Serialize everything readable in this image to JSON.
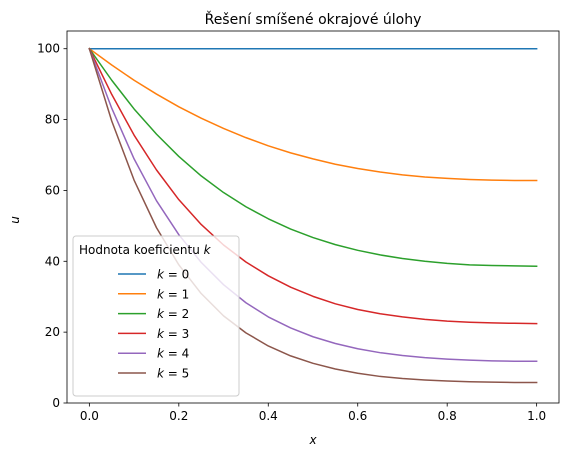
{
  "chart_data": {
    "type": "line",
    "title": "Řešení smíšené okrajové úlohy",
    "xlabel": "x",
    "ylabel": "u",
    "xlim": [
      -0.05,
      1.05
    ],
    "ylim": [
      0,
      105
    ],
    "xticks": [
      0.0,
      0.2,
      0.4,
      0.6,
      0.8,
      1.0
    ],
    "xtick_labels": [
      "0.0",
      "0.2",
      "0.4",
      "0.6",
      "0.8",
      "1.0"
    ],
    "yticks": [
      0,
      20,
      40,
      60,
      80,
      100
    ],
    "ytick_labels": [
      "0",
      "20",
      "40",
      "60",
      "80",
      "100"
    ],
    "grid": false,
    "legend": {
      "title": "Hodnota koeficientu k",
      "placement": "lower-left"
    },
    "x": [
      0.0,
      0.05,
      0.1,
      0.15,
      0.2,
      0.25,
      0.3,
      0.35,
      0.4,
      0.45,
      0.5,
      0.55,
      0.6,
      0.65,
      0.7,
      0.75,
      0.8,
      0.85,
      0.9,
      0.95,
      1.0
    ],
    "series": [
      {
        "name": "k = 0",
        "color": "#1f77b4",
        "values": [
          100.0,
          100.0,
          100.0,
          100.0,
          100.0,
          100.0,
          100.0,
          100.0,
          100.0,
          100.0,
          100.0,
          100.0,
          100.0,
          100.0,
          100.0,
          100.0,
          100.0,
          100.0,
          100.0,
          100.0,
          100.0
        ]
      },
      {
        "name": "k = 1",
        "color": "#ff7f0e",
        "values": [
          100.0,
          95.4,
          91.1,
          87.2,
          83.6,
          80.4,
          77.5,
          74.9,
          72.6,
          70.6,
          68.9,
          67.4,
          66.2,
          65.2,
          64.4,
          63.8,
          63.4,
          63.1,
          62.9,
          62.8,
          62.8
        ]
      },
      {
        "name": "k = 2",
        "color": "#2ca02c",
        "values": [
          100.0,
          91.1,
          83.0,
          75.9,
          69.6,
          64.1,
          59.4,
          55.4,
          52.0,
          49.1,
          46.7,
          44.7,
          43.1,
          41.8,
          40.8,
          40.0,
          39.4,
          39.0,
          38.8,
          38.7,
          38.6
        ]
      },
      {
        "name": "k = 3",
        "color": "#d62728",
        "values": [
          100.0,
          87.1,
          75.6,
          65.8,
          57.4,
          50.4,
          44.6,
          39.8,
          35.9,
          32.7,
          30.1,
          28.0,
          26.4,
          25.2,
          24.3,
          23.6,
          23.1,
          22.8,
          22.6,
          22.5,
          22.4
        ]
      },
      {
        "name": "k = 4",
        "color": "#9467bd",
        "values": [
          100.0,
          83.2,
          68.9,
          57.1,
          47.5,
          39.7,
          33.4,
          28.3,
          24.3,
          21.2,
          18.7,
          16.8,
          15.3,
          14.2,
          13.4,
          12.8,
          12.4,
          12.1,
          11.9,
          11.8,
          11.8
        ]
      },
      {
        "name": "k = 5",
        "color": "#8c564b",
        "values": [
          100.0,
          79.6,
          62.9,
          49.5,
          39.0,
          30.9,
          24.6,
          19.8,
          16.1,
          13.3,
          11.2,
          9.6,
          8.4,
          7.5,
          6.9,
          6.5,
          6.2,
          6.0,
          5.9,
          5.8,
          5.8
        ]
      }
    ]
  }
}
